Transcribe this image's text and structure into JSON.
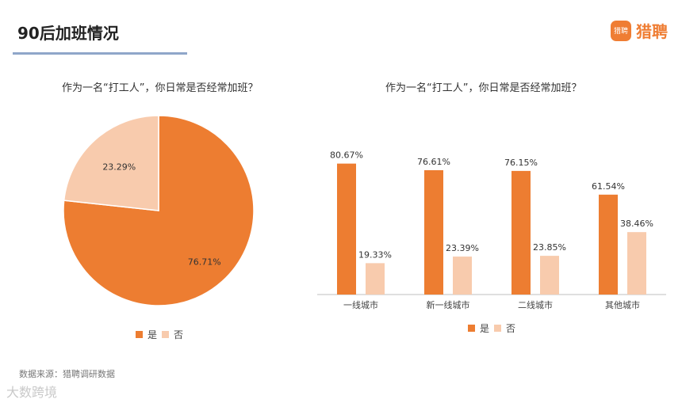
{
  "header": {
    "title": "90后加班情况"
  },
  "logo": {
    "badge": "猎聘",
    "text": "猎聘"
  },
  "colors": {
    "yes": "#ed7d31",
    "no": "#f8cbad"
  },
  "footer": {
    "source": "数据来源：猎聘调研数据",
    "watermark": "大数跨境"
  },
  "chart_data": [
    {
      "type": "pie",
      "title": "作为一名“打工人”，你日常是否经常加班？",
      "series": [
        {
          "name": "是",
          "value": 76.71,
          "label": "76.71%"
        },
        {
          "name": "否",
          "value": 23.29,
          "label": "23.29%"
        }
      ],
      "legend": [
        "是",
        "否"
      ],
      "legend_position": "bottom"
    },
    {
      "type": "bar",
      "title": "作为一名“打工人”，你日常是否经常加班？",
      "categories": [
        "一线城市",
        "新一线城市",
        "二线城市",
        "其他城市"
      ],
      "series": [
        {
          "name": "是",
          "values": [
            80.67,
            76.61,
            76.15,
            61.54
          ],
          "labels": [
            "80.67%",
            "76.61%",
            "76.15%",
            "61.54%"
          ]
        },
        {
          "name": "否",
          "values": [
            19.33,
            23.39,
            23.85,
            38.46
          ],
          "labels": [
            "19.33%",
            "23.39%",
            "23.85%",
            "38.46%"
          ]
        }
      ],
      "ylim": [
        0,
        100
      ],
      "grid": false,
      "legend_position": "bottom"
    }
  ]
}
